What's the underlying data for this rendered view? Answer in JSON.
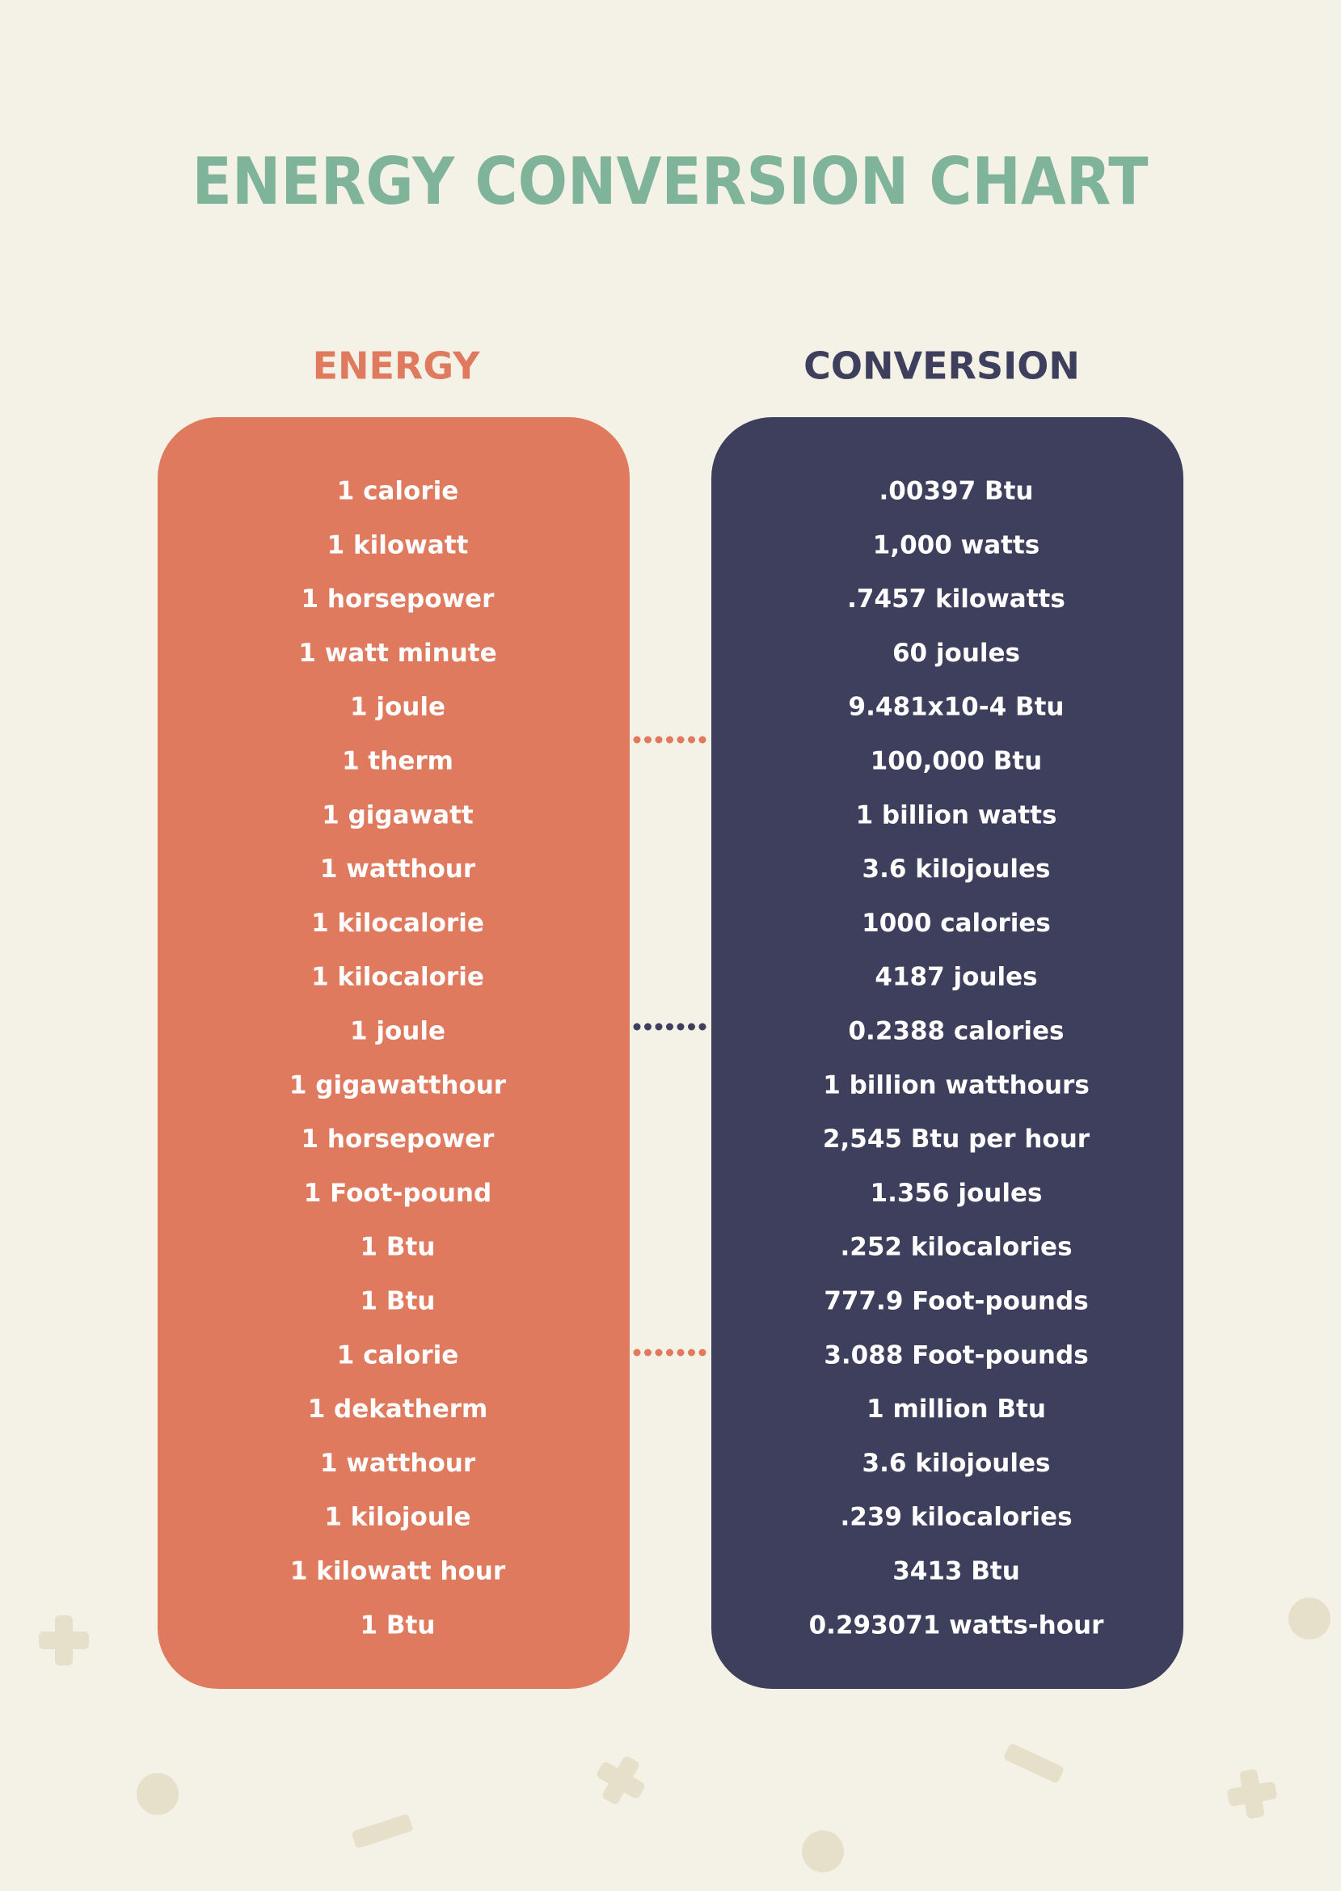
{
  "title": "ENERGY CONVERSION CHART",
  "table": {
    "headers": [
      "ENERGY",
      "CONVERSION"
    ],
    "rows": [
      [
        "1 calorie",
        ".00397 Btu"
      ],
      [
        "1 kilowatt",
        "1,000 watts"
      ],
      [
        "1 horsepower",
        ".7457 kilowatts"
      ],
      [
        "1 watt minute",
        "60 joules"
      ],
      [
        "1 joule",
        "9.481x10-4 Btu"
      ],
      [
        "1 therm",
        "100,000 Btu"
      ],
      [
        "1 gigawatt",
        "1 billion watts"
      ],
      [
        "1 watthour",
        "3.6 kilojoules"
      ],
      [
        "1 kilocalorie",
        "1000 calories"
      ],
      [
        "1 kilocalorie",
        "4187 joules"
      ],
      [
        "1 joule",
        "0.2388 calories"
      ],
      [
        "1 gigawatthour",
        "1 billion watthours"
      ],
      [
        "1 horsepower",
        "2,545 Btu per hour"
      ],
      [
        "1 Foot-pound",
        "1.356 joules"
      ],
      [
        "1 Btu",
        ".252 kilocalories"
      ],
      [
        "1 Btu",
        "777.9 Foot-pounds"
      ],
      [
        "1 calorie",
        "3.088 Foot-pounds"
      ],
      [
        "1 dekatherm",
        "1 million Btu"
      ],
      [
        "1 watthour",
        "3.6 kilojoules"
      ],
      [
        "1 kilojoule",
        ".239 kilocalories"
      ],
      [
        "1 kilowatt hour",
        "3413 Btu"
      ],
      [
        "1 Btu",
        "0.293071 watts-hour"
      ]
    ]
  }
}
